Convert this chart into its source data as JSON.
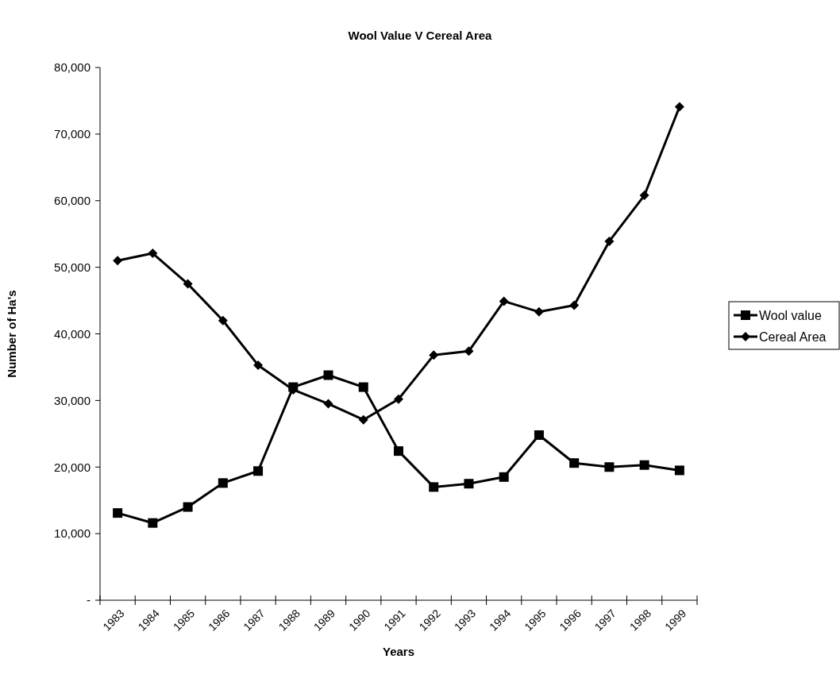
{
  "chart_data": {
    "type": "line",
    "title": "Wool Value V Cereal Area",
    "xlabel": "Years",
    "ylabel": "Number of Ha's",
    "categories": [
      "1983",
      "1984",
      "1985",
      "1986",
      "1987",
      "1988",
      "1989",
      "1990",
      "1991",
      "1992",
      "1993",
      "1994",
      "1995",
      "1996",
      "1997",
      "1998",
      "1999"
    ],
    "series": [
      {
        "name": "Wool value",
        "color": "#000000",
        "marker": "square",
        "values": [
          13100,
          11600,
          14000,
          17600,
          19400,
          32000,
          33800,
          32000,
          22400,
          17000,
          17500,
          18500,
          24800,
          20600,
          20000,
          20300,
          19500
        ]
      },
      {
        "name": "Cereal Area",
        "color": "#000000",
        "marker": "diamond",
        "values": [
          51000,
          52100,
          47500,
          42000,
          35300,
          31600,
          29500,
          27100,
          30200,
          36800,
          37400,
          44900,
          43300,
          44300,
          53900,
          60800,
          74100
        ]
      }
    ],
    "ylim": [
      0,
      80000
    ],
    "yticks": [
      {
        "value": 0,
        "label": "-"
      },
      {
        "value": 10000,
        "label": "10,000"
      },
      {
        "value": 20000,
        "label": "20,000"
      },
      {
        "value": 30000,
        "label": "30,000"
      },
      {
        "value": 40000,
        "label": "40,000"
      },
      {
        "value": 50000,
        "label": "50,000"
      },
      {
        "value": 60000,
        "label": "60,000"
      },
      {
        "value": 70000,
        "label": "70,000"
      },
      {
        "value": 80000,
        "label": "80,000"
      }
    ],
    "grid": false,
    "legend": "right",
    "line_style": "solid"
  }
}
